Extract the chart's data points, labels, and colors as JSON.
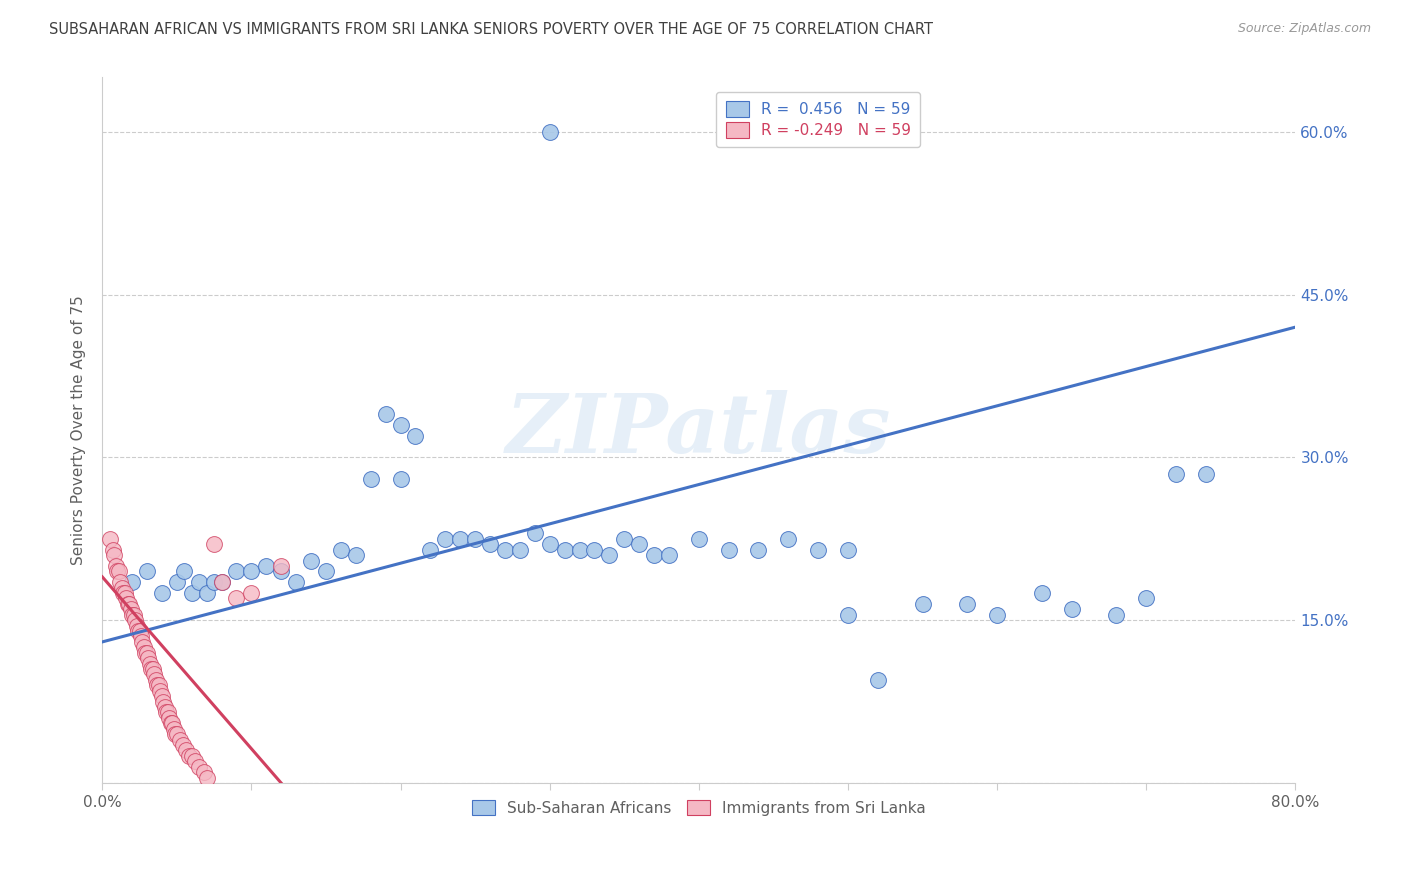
{
  "title": "SUBSAHARAN AFRICAN VS IMMIGRANTS FROM SRI LANKA SENIORS POVERTY OVER THE AGE OF 75 CORRELATION CHART",
  "source": "Source: ZipAtlas.com",
  "ylabel": "Seniors Poverty Over the Age of 75",
  "watermark": "ZIPatlas",
  "blue_R": 0.456,
  "blue_N": 59,
  "pink_R": -0.249,
  "pink_N": 59,
  "xlim": [
    0.0,
    0.8
  ],
  "ylim": [
    0.0,
    0.65
  ],
  "ytick_positions": [
    0.0,
    0.15,
    0.3,
    0.45,
    0.6
  ],
  "ytick_labels": [
    "",
    "15.0%",
    "30.0%",
    "45.0%",
    "60.0%"
  ],
  "blue_color": "#a8c8e8",
  "pink_color": "#f5b8c4",
  "blue_line_color": "#4472c4",
  "pink_line_color": "#d04060",
  "legend_label_blue": "Sub-Saharan Africans",
  "legend_label_pink": "Immigrants from Sri Lanka",
  "blue_scatter_x": [
    0.3,
    0.02,
    0.03,
    0.04,
    0.05,
    0.055,
    0.06,
    0.065,
    0.07,
    0.075,
    0.08,
    0.09,
    0.1,
    0.11,
    0.12,
    0.13,
    0.14,
    0.15,
    0.16,
    0.17,
    0.18,
    0.19,
    0.2,
    0.21,
    0.22,
    0.23,
    0.24,
    0.25,
    0.26,
    0.27,
    0.28,
    0.29,
    0.3,
    0.31,
    0.32,
    0.33,
    0.34,
    0.35,
    0.36,
    0.37,
    0.38,
    0.4,
    0.42,
    0.44,
    0.46,
    0.48,
    0.5,
    0.52,
    0.55,
    0.58,
    0.6,
    0.63,
    0.65,
    0.68,
    0.7,
    0.72,
    0.74,
    0.2,
    0.5
  ],
  "blue_scatter_y": [
    0.6,
    0.185,
    0.195,
    0.175,
    0.185,
    0.195,
    0.175,
    0.185,
    0.175,
    0.185,
    0.185,
    0.195,
    0.195,
    0.2,
    0.195,
    0.185,
    0.205,
    0.195,
    0.215,
    0.21,
    0.28,
    0.34,
    0.33,
    0.32,
    0.215,
    0.225,
    0.225,
    0.225,
    0.22,
    0.215,
    0.215,
    0.23,
    0.22,
    0.215,
    0.215,
    0.215,
    0.21,
    0.225,
    0.22,
    0.21,
    0.21,
    0.225,
    0.215,
    0.215,
    0.225,
    0.215,
    0.215,
    0.095,
    0.165,
    0.165,
    0.155,
    0.175,
    0.16,
    0.155,
    0.17,
    0.285,
    0.285,
    0.28,
    0.155
  ],
  "pink_scatter_x": [
    0.005,
    0.007,
    0.008,
    0.009,
    0.01,
    0.011,
    0.012,
    0.013,
    0.014,
    0.015,
    0.016,
    0.017,
    0.018,
    0.019,
    0.02,
    0.021,
    0.022,
    0.023,
    0.024,
    0.025,
    0.026,
    0.027,
    0.028,
    0.029,
    0.03,
    0.031,
    0.032,
    0.033,
    0.034,
    0.035,
    0.036,
    0.037,
    0.038,
    0.039,
    0.04,
    0.041,
    0.042,
    0.043,
    0.044,
    0.045,
    0.046,
    0.047,
    0.048,
    0.049,
    0.05,
    0.052,
    0.054,
    0.056,
    0.058,
    0.06,
    0.062,
    0.065,
    0.068,
    0.07,
    0.075,
    0.08,
    0.09,
    0.1,
    0.12
  ],
  "pink_scatter_y": [
    0.225,
    0.215,
    0.21,
    0.2,
    0.195,
    0.195,
    0.185,
    0.18,
    0.175,
    0.175,
    0.17,
    0.165,
    0.165,
    0.16,
    0.155,
    0.155,
    0.15,
    0.145,
    0.14,
    0.14,
    0.135,
    0.13,
    0.125,
    0.12,
    0.12,
    0.115,
    0.11,
    0.105,
    0.105,
    0.1,
    0.095,
    0.09,
    0.09,
    0.085,
    0.08,
    0.075,
    0.07,
    0.065,
    0.065,
    0.06,
    0.055,
    0.055,
    0.05,
    0.045,
    0.045,
    0.04,
    0.035,
    0.03,
    0.025,
    0.025,
    0.02,
    0.015,
    0.01,
    0.005,
    0.22,
    0.185,
    0.17,
    0.175,
    0.2
  ],
  "background_color": "#ffffff",
  "grid_color": "#cccccc",
  "title_color": "#404040",
  "axis_label_color": "#606060",
  "right_yaxis_color": "#4472c4",
  "blue_line_start_x": 0.0,
  "blue_line_start_y": 0.13,
  "blue_line_end_x": 0.8,
  "blue_line_end_y": 0.42,
  "pink_line_start_x": 0.0,
  "pink_line_start_y": 0.19,
  "pink_line_end_x": 0.12,
  "pink_line_end_y": 0.0
}
